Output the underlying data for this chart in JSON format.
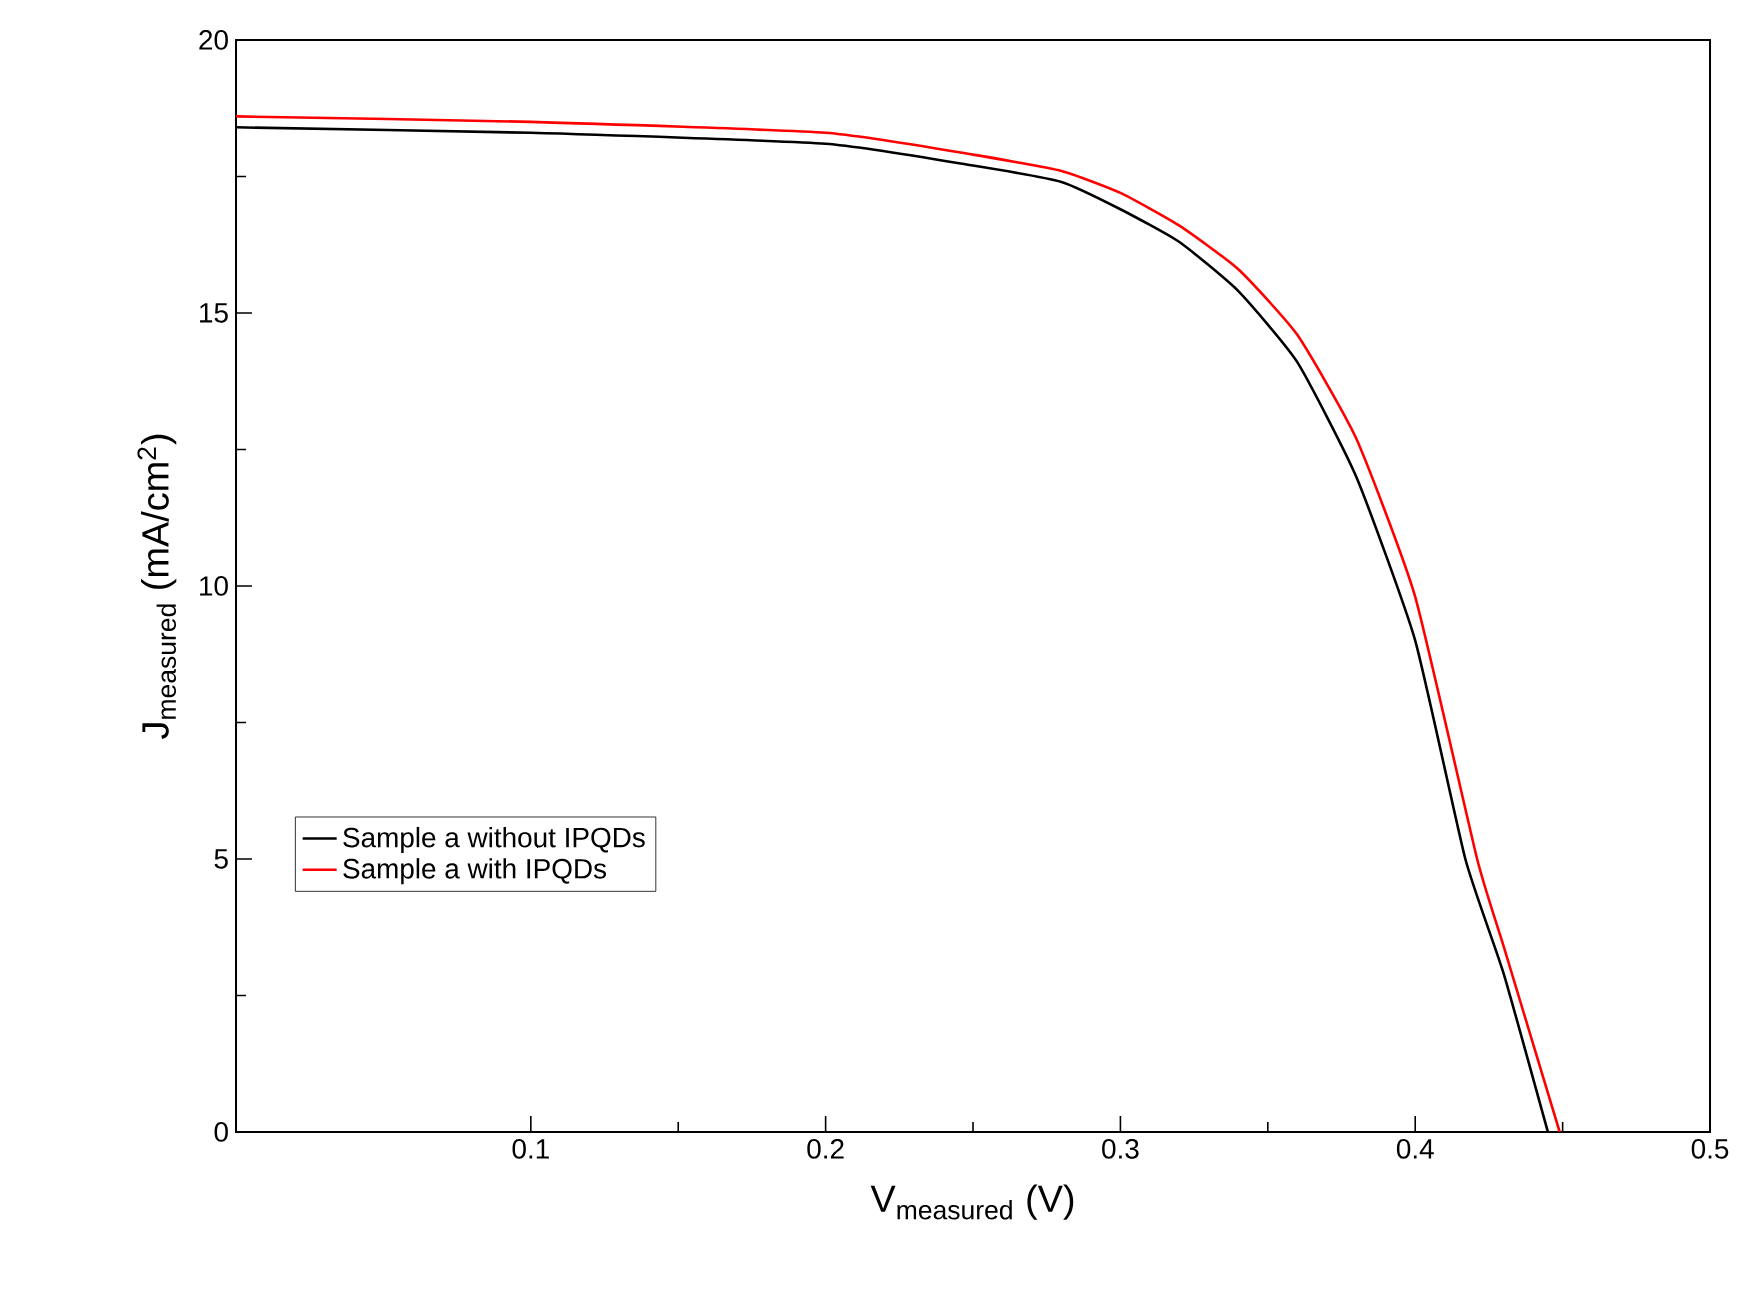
{
  "chart_data": {
    "type": "line",
    "xlabel": "V$_{measured}$ (V)",
    "ylabel": "J$_{measured}$ (mA/cm$^{2}$)",
    "xlim": [
      0,
      0.5
    ],
    "ylim": [
      0,
      20
    ],
    "xticks": [
      0.1,
      0.2,
      0.3,
      0.4,
      0.5
    ],
    "yticks": [
      0,
      5,
      10,
      15,
      20
    ],
    "legend": "bottom left",
    "series": [
      {
        "name": "Sample a without IPQDs",
        "color": "#000000",
        "x": [
          0,
          0.1,
          0.2,
          0.25,
          0.28,
          0.3,
          0.32,
          0.34,
          0.36,
          0.38,
          0.4,
          0.417,
          0.43,
          0.445
        ],
        "values": [
          18.4,
          18.3,
          18.1,
          17.7,
          17.4,
          16.9,
          16.3,
          15.4,
          14.1,
          12.0,
          9.0,
          5.0,
          2.9,
          0
        ]
      },
      {
        "name": "Sample a with IPQDs",
        "color": "#ff0000",
        "x": [
          0,
          0.1,
          0.2,
          0.25,
          0.28,
          0.3,
          0.32,
          0.34,
          0.36,
          0.38,
          0.4,
          0.421,
          0.43,
          0.449
        ],
        "values": [
          18.6,
          18.5,
          18.3,
          17.9,
          17.6,
          17.2,
          16.6,
          15.8,
          14.6,
          12.7,
          9.8,
          5.0,
          3.4,
          0
        ]
      }
    ]
  }
}
